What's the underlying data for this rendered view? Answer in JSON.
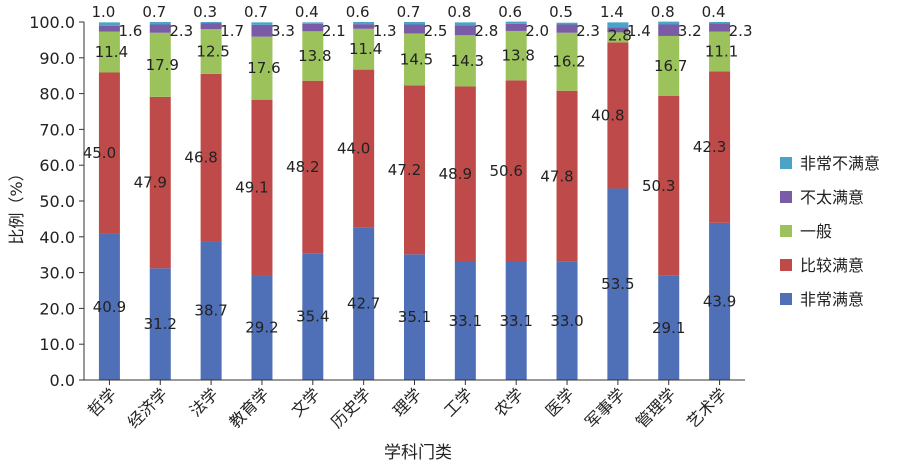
{
  "chart_data": {
    "type": "bar",
    "stacked": true,
    "xlabel": "学科门类",
    "ylabel": "比例（%）",
    "ylim": [
      0,
      100
    ],
    "yticks": [
      "0.0",
      "10.0",
      "20.0",
      "30.0",
      "40.0",
      "50.0",
      "60.0",
      "70.0",
      "80.0",
      "90.0",
      "100.0"
    ],
    "categories": [
      "哲学",
      "经济学",
      "法学",
      "教育学",
      "文学",
      "历史学",
      "理学",
      "工学",
      "农学",
      "医学",
      "军事学",
      "管理学",
      "艺术学"
    ],
    "series": [
      {
        "name": "非常满意",
        "color": "#4F6FB7",
        "values": [
          40.9,
          31.2,
          38.7,
          29.2,
          35.4,
          42.7,
          35.1,
          33.1,
          33.1,
          33.0,
          53.5,
          29.1,
          43.9
        ]
      },
      {
        "name": "比较满意",
        "color": "#BF4A4A",
        "values": [
          45.0,
          47.9,
          46.8,
          49.1,
          48.2,
          44.0,
          47.2,
          48.9,
          50.6,
          47.8,
          40.8,
          50.3,
          42.3
        ]
      },
      {
        "name": "一般",
        "color": "#9CC25C",
        "values": [
          11.4,
          17.9,
          12.5,
          17.6,
          13.8,
          11.4,
          14.5,
          14.3,
          13.8,
          16.2,
          2.8,
          16.7,
          11.1
        ]
      },
      {
        "name": "不太满意",
        "color": "#7A5BA5",
        "values": [
          1.6,
          2.3,
          1.7,
          3.3,
          2.1,
          1.3,
          2.5,
          2.8,
          2.0,
          2.3,
          1.4,
          3.2,
          2.3
        ]
      },
      {
        "name": "非常不满意",
        "color": "#4BA3C8",
        "values": [
          1.0,
          0.7,
          0.3,
          0.7,
          0.4,
          0.6,
          0.7,
          0.8,
          0.6,
          0.5,
          1.4,
          0.8,
          0.4
        ]
      }
    ],
    "legend_position": "right",
    "grid": false
  }
}
